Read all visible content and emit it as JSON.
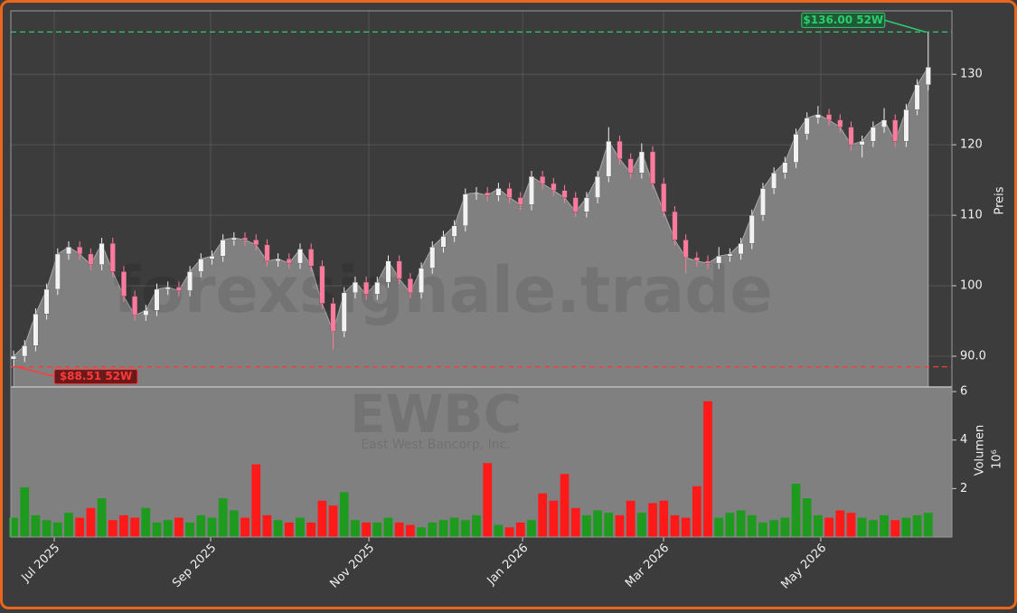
{
  "chart_data": {
    "type": "candlestick",
    "watermark": "forexsignale.trade",
    "symbol": "EWBC",
    "company": "East West Bancorp, Inc.",
    "ylabel": "Preis",
    "grid": true,
    "up_color": "#f2f2f2",
    "down_color": "#ff7a9c",
    "area_color": "#808080",
    "xlim": [
      -0.25,
      85.15
    ],
    "xticks": [
      {
        "value": 3.69,
        "label": "Jul 2025"
      },
      {
        "value": 17.88,
        "label": "Sep 2025"
      },
      {
        "value": 32.24,
        "label": "Nov 2025"
      },
      {
        "value": 46.19,
        "label": "Jan 2026"
      },
      {
        "value": 58.98,
        "label": "Mar 2026"
      },
      {
        "value": 73.25,
        "label": "May 2026"
      }
    ],
    "ylim": [
      85.64,
      139
    ],
    "yticks": [
      {
        "value": 90,
        "label": "90.0"
      },
      100,
      110,
      120,
      130
    ],
    "open": [
      89.6,
      90.0,
      91.5,
      96,
      99.5,
      104.5,
      105.5,
      104.5,
      103,
      106,
      102,
      98.5,
      95.8,
      96.5,
      99.5,
      99.8,
      99.3,
      102,
      103.8,
      104.2,
      106.5,
      106.8,
      106.5,
      105.8,
      103.5,
      103.8,
      103.2,
      105.2,
      102.8,
      97.5,
      93.5,
      99,
      100.5,
      98.8,
      100.5,
      103.5,
      101,
      99,
      102.5,
      105.5,
      107,
      108.5,
      113,
      113.2,
      112.8,
      113.8,
      112.5,
      111.5,
      115.5,
      114.5,
      113.5,
      112.5,
      110.5,
      112.5,
      115.5,
      120.5,
      118,
      116,
      119,
      114.5,
      110.5,
      106.5,
      104,
      103.5,
      103.2,
      104.2,
      104.5,
      106,
      110,
      113.8,
      116,
      117.5,
      121.5,
      123.8,
      124.3,
      123.5,
      122.5,
      120,
      120.5,
      122.5,
      123.5,
      120.5,
      125,
      128.5
    ],
    "high": [
      90.8,
      92.3,
      96.8,
      100.3,
      105.3,
      106.3,
      106.3,
      105.3,
      106.8,
      106.8,
      102.8,
      99.3,
      97.3,
      100.3,
      100.6,
      100.6,
      102.8,
      104.6,
      105.0,
      107.3,
      107.6,
      107.6,
      107.3,
      106.6,
      104.6,
      104.6,
      106.0,
      106.0,
      103.6,
      98.3,
      99.8,
      101.3,
      101.3,
      101.3,
      104.3,
      104.3,
      101.8,
      103.3,
      106.3,
      107.8,
      109.3,
      113.8,
      114.0,
      114.0,
      114.6,
      114.6,
      113.3,
      116.3,
      116.3,
      115.3,
      114.3,
      113.3,
      113.3,
      116.3,
      122.5,
      121.3,
      118.8,
      120.2,
      119.8,
      115.3,
      111.3,
      107.3,
      104.8,
      104.3,
      105.5,
      105.3,
      106.8,
      110.8,
      114.6,
      116.8,
      118.3,
      122.3,
      124.6,
      125.5,
      125.1,
      124.3,
      123.3,
      121.3,
      123.3,
      125.2,
      124.3,
      125.8,
      129.3,
      136
    ],
    "low": [
      88.51,
      89.2,
      90.7,
      95.2,
      98.7,
      103.7,
      103.7,
      102.2,
      102.2,
      101.2,
      97.7,
      95.0,
      95.0,
      95.7,
      98.7,
      98.5,
      98.5,
      101.2,
      103.0,
      103.4,
      105.7,
      105.7,
      105.0,
      102.7,
      102.7,
      102.4,
      102.4,
      102.0,
      96.7,
      91.0,
      92.7,
      98.2,
      98.0,
      98.0,
      99.7,
      100.2,
      98.2,
      98.2,
      101.7,
      104.7,
      106.2,
      107.7,
      112.2,
      112.0,
      112.0,
      111.7,
      110.7,
      110.7,
      113.7,
      112.7,
      111.7,
      109.7,
      109.7,
      111.7,
      114.7,
      117.2,
      115.2,
      115.2,
      113.7,
      109.7,
      105.7,
      101.8,
      102.7,
      102.4,
      102.4,
      103.4,
      103.7,
      105.2,
      109.2,
      113.0,
      115.2,
      116.7,
      120.7,
      123.0,
      122.7,
      121.7,
      119.2,
      118.2,
      119.7,
      121.7,
      119.7,
      119.7,
      124.2,
      127.7
    ],
    "close": [
      90.0,
      91.5,
      96,
      99.5,
      104.5,
      105.5,
      104.5,
      103,
      106,
      102,
      98.5,
      95.8,
      96.5,
      99.5,
      99.8,
      99.3,
      102,
      103.8,
      104.2,
      106.5,
      106.8,
      106.5,
      105.8,
      103.5,
      103.8,
      103.2,
      105.2,
      102.8,
      97.5,
      93.5,
      99,
      100.5,
      98.8,
      100.5,
      103.5,
      101,
      99,
      102.5,
      105.5,
      107,
      108.5,
      113,
      113.2,
      112.8,
      113.8,
      112.5,
      111.5,
      115.5,
      114.5,
      113.5,
      112.5,
      110.5,
      112.5,
      115.5,
      120.5,
      118,
      116,
      119,
      114.5,
      110.5,
      106.5,
      104,
      103.5,
      103.2,
      104.2,
      104.5,
      106,
      110,
      113.8,
      116,
      117.5,
      121.5,
      123.8,
      124.3,
      123.5,
      122.5,
      120,
      120.5,
      122.5,
      123.5,
      120.5,
      125,
      128.5,
      131
    ],
    "annotations": [
      {
        "label": "$136.00 52W",
        "value": 136,
        "color": "#2ecc71"
      },
      {
        "label": "$88.51 52W",
        "value": 88.51,
        "color": "#ff3b3b"
      }
    ],
    "volume": {
      "label": "Volumen",
      "scale_label": "10⁶",
      "up_color": "#1e9a1e",
      "down_color": "#ff1a1a",
      "ylim": [
        0,
        6.19
      ],
      "yticks": [
        2,
        4,
        6
      ],
      "values": [
        0.8,
        2.05,
        0.9,
        0.7,
        0.6,
        1.0,
        0.8,
        1.2,
        1.6,
        0.7,
        0.9,
        0.8,
        1.2,
        0.6,
        0.7,
        0.8,
        0.6,
        0.9,
        0.8,
        1.6,
        1.1,
        0.8,
        3.0,
        0.9,
        0.7,
        0.6,
        0.8,
        0.6,
        1.5,
        1.3,
        1.85,
        0.7,
        0.6,
        0.6,
        0.8,
        0.6,
        0.5,
        0.4,
        0.6,
        0.7,
        0.8,
        0.7,
        0.9,
        3.05,
        0.5,
        0.4,
        0.6,
        0.7,
        1.8,
        1.5,
        2.6,
        1.2,
        0.9,
        1.1,
        1.0,
        0.9,
        1.5,
        1.0,
        1.4,
        1.5,
        0.9,
        0.8,
        2.1,
        5.6,
        0.8,
        1.0,
        1.1,
        0.9,
        0.6,
        0.7,
        0.8,
        2.2,
        1.6,
        0.9,
        0.8,
        1.1,
        1.0,
        0.8,
        0.7,
        0.9,
        0.7,
        0.8,
        0.9,
        1.0
      ]
    }
  }
}
